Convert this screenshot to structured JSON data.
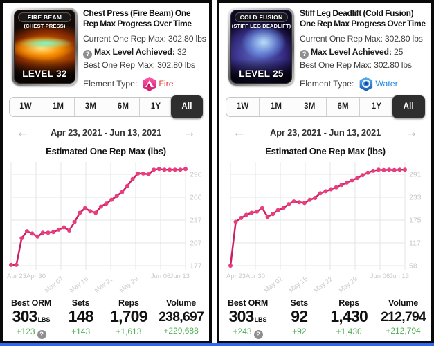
{
  "colors": {
    "line": "#cb1f62",
    "dot": "#e83e7d",
    "delta_green": "#4caf50",
    "fire": "#e53935",
    "water": "#1e88e5",
    "bottom_bar": "#2e68f0"
  },
  "icons": {
    "help": "?",
    "prev": "←",
    "next": "→"
  },
  "panels": [
    {
      "card": {
        "banner": "FIRE BEAM",
        "subtitle": "(CHEST PRESS)",
        "level": "LEVEL 32"
      },
      "title": "Chest Press (Fire Beam) One Rep Max Progress Over Time",
      "current_orm": "Current One Rep Max: 302.80 lbs",
      "max_level_label": "Max Level Achieved:",
      "max_level_value": "32",
      "best_orm": "Best One Rep Max: 302.80 lbs",
      "element_label": "Element Type:",
      "element_type": "Fire",
      "element_color": "#e53935",
      "tabs": [
        "1W",
        "1M",
        "3M",
        "6M",
        "1Y",
        "All"
      ],
      "active_tab": "All",
      "date_range": "Apr 23, 2021 - Jun 13, 2021",
      "chart_title": "Estimated One Rep Max (lbs)",
      "summary": [
        {
          "label": "Best ORM",
          "value": "303",
          "unit": "LBS",
          "delta": "+123",
          "has_help": true
        },
        {
          "label": "Sets",
          "value": "148",
          "delta": "+143"
        },
        {
          "label": "Reps",
          "value": "1,709",
          "delta": "+1,613"
        },
        {
          "label": "Volume",
          "value": "238,697",
          "delta": "+229,688"
        }
      ]
    },
    {
      "card": {
        "banner": "COLD FUSION",
        "subtitle": "(STIFF LEG DEADLIFT)",
        "level": "LEVEL 25"
      },
      "title": "Stiff Leg Deadlift (Cold Fusion) One Rep Max Progress Over Time",
      "current_orm": "Current One Rep Max: 302.80 lbs",
      "max_level_label": "Max Level Achieved:",
      "max_level_value": "25",
      "best_orm": "Best One Rep Max: 302.80 lbs",
      "element_label": "Element Type:",
      "element_type": "Water",
      "element_color": "#1e88e5",
      "tabs": [
        "1W",
        "1M",
        "3M",
        "6M",
        "1Y",
        "All"
      ],
      "active_tab": "All",
      "date_range": "Apr 23, 2021 - Jun 13, 2021",
      "chart_title": "Estimated One Rep Max (lbs)",
      "summary": [
        {
          "label": "Best ORM",
          "value": "303",
          "unit": "LBS",
          "delta": "+243",
          "has_help": true
        },
        {
          "label": "Sets",
          "value": "92",
          "delta": "+92"
        },
        {
          "label": "Reps",
          "value": "1,430",
          "delta": "+1,430"
        },
        {
          "label": "Volume",
          "value": "212,794",
          "delta": "+212,794"
        }
      ]
    }
  ],
  "chart_data": [
    {
      "type": "line",
      "title": "Estimated One Rep Max (lbs)",
      "x_labels": [
        "Apr 23",
        "Apr 30",
        "May 07",
        "May 15",
        "May 22",
        "May 29",
        "Jun 06",
        "Jun 13"
      ],
      "y_ticks": [
        296,
        266,
        237,
        207,
        177
      ],
      "ylim": [
        170,
        308
      ],
      "grid": true,
      "legend": false,
      "line_color": "#cb1f62",
      "dot_color": "#e83e7d",
      "values": [
        178,
        178,
        213,
        222,
        219,
        215,
        220,
        220,
        221,
        224,
        227,
        223,
        234,
        246,
        252,
        248,
        246,
        254,
        258,
        263,
        268,
        273,
        281,
        290,
        297,
        297,
        296,
        302,
        303,
        302,
        302,
        302,
        302,
        303
      ]
    },
    {
      "type": "line",
      "title": "Estimated One Rep Max (lbs)",
      "x_labels": [
        "Apr 23",
        "Apr 30",
        "May 07",
        "May 15",
        "May 22",
        "May 29",
        "Jun 06",
        "Jun 13"
      ],
      "y_ticks": [
        291,
        233,
        175,
        117,
        58
      ],
      "ylim": [
        50,
        308
      ],
      "grid": true,
      "legend": false,
      "line_color": "#cb1f62",
      "dot_color": "#e83e7d",
      "values": [
        58,
        170,
        180,
        188,
        193,
        196,
        205,
        183,
        190,
        200,
        205,
        215,
        222,
        220,
        218,
        226,
        231,
        243,
        248,
        253,
        258,
        264,
        270,
        276,
        282,
        289,
        295,
        300,
        303,
        302,
        303,
        302,
        303,
        303
      ]
    }
  ]
}
